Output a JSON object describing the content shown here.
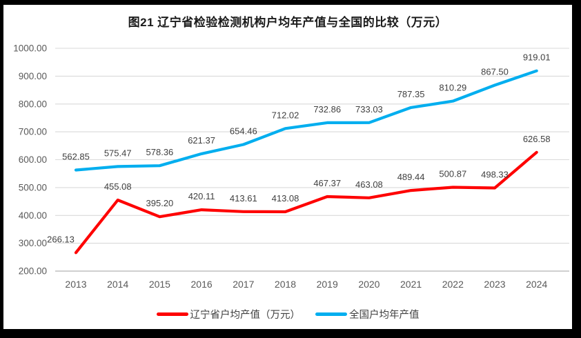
{
  "chart_data": {
    "type": "line",
    "title": "图21 辽宁省检验检测机构户均年产值与全国的比较（万元）",
    "categories": [
      "2013",
      "2014",
      "2015",
      "2016",
      "2017",
      "2018",
      "2019",
      "2020",
      "2021",
      "2022",
      "2023",
      "2024"
    ],
    "series": [
      {
        "name": "辽宁省户均产值（万元）",
        "color": "#fe0000",
        "values": [
          266.13,
          455.08,
          395.2,
          420.11,
          413.61,
          413.08,
          467.37,
          463.08,
          489.44,
          500.87,
          498.33,
          626.58
        ]
      },
      {
        "name": "全国户均年产值",
        "color": "#00aeef",
        "values": [
          562.85,
          575.47,
          578.36,
          621.37,
          654.46,
          712.02,
          732.86,
          733.03,
          787.35,
          810.29,
          867.5,
          919.01
        ]
      }
    ],
    "ylim": [
      200,
      1000
    ],
    "y_tick_step": 100,
    "y_tick_labels": [
      "200.00",
      "300.00",
      "400.00",
      "500.00",
      "600.00",
      "700.00",
      "800.00",
      "900.00",
      "1000.00"
    ],
    "xlabel": "",
    "ylabel": "",
    "grid": "horizontal",
    "legend_position": "bottom",
    "value_labels": true,
    "value_label_decimals": 2
  },
  "colors": {
    "frame": "#000000",
    "background": "#ffffff",
    "gridline": "#d9d9d9",
    "axis_line": "#bfbfbf",
    "tick_text": "#595959",
    "data_label_text": "#404040",
    "title_text": "#1a1a1a"
  }
}
